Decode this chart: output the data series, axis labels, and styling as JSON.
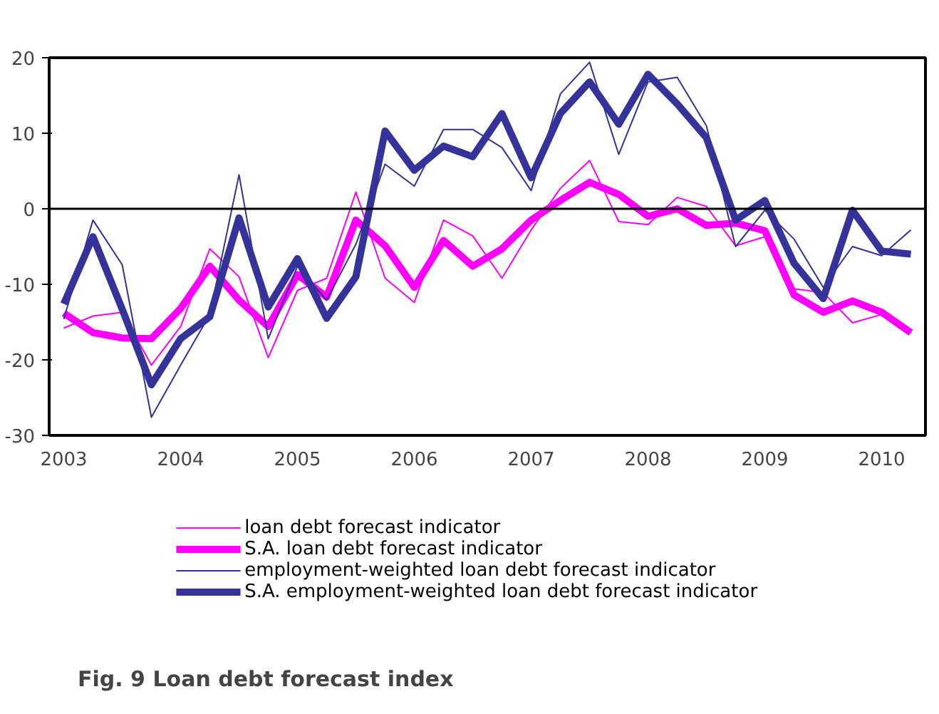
{
  "chart_data": {
    "type": "line",
    "title": "Fig. 9 Loan debt forecast index",
    "categories": [
      "2003",
      null,
      null,
      null,
      "2004",
      null,
      null,
      null,
      "2005",
      null,
      null,
      null,
      "2006",
      null,
      null,
      null,
      "2007",
      null,
      null,
      null,
      "2008",
      null,
      null,
      null,
      "2009",
      null,
      null,
      null,
      "2010",
      null
    ],
    "series": [
      {
        "name": "loan debt forecast indicator",
        "color": "#ff00ff",
        "values": [
          -15.8,
          -14.2,
          -13.7,
          -20.7,
          -15.6,
          -5.3,
          -9.0,
          -19.7,
          -10.8,
          -9.2,
          2.2,
          -9.2,
          -12.4,
          -1.5,
          -3.6,
          -9.2,
          -2.8,
          2.7,
          6.4,
          -1.7,
          -2.1,
          1.5,
          0.3,
          -4.9,
          -3.7,
          -10.6,
          -11.1,
          -15.1,
          -14.0,
          -16.4
        ]
      },
      {
        "name": "S.A. loan debt forecast indicator",
        "color": "#ff00ff",
        "values": [
          -13.8,
          -16.4,
          -17.1,
          -17.2,
          -13.2,
          -7.6,
          -12.1,
          -15.6,
          -8.7,
          -11.7,
          -1.5,
          -4.9,
          -10.4,
          -4.2,
          -7.6,
          -5.3,
          -1.5,
          1.1,
          3.5,
          1.9,
          -1.0,
          0.0,
          -2.2,
          -1.9,
          -2.9,
          -11.4,
          -13.7,
          -12.2,
          -13.7,
          -16.4
        ]
      },
      {
        "name": "employment-weighted loan debt forecast indicator",
        "color": "#333399",
        "values": [
          -14.6,
          -1.5,
          -7.4,
          -27.6,
          -20.7,
          -14.0,
          4.5,
          -17.2,
          -7.6,
          -12.1,
          -4.7,
          5.9,
          3.0,
          10.5,
          10.5,
          8.1,
          2.4,
          15.2,
          19.4,
          7.2,
          16.8,
          17.4,
          11.0,
          -5.0,
          -0.2,
          -4.0,
          -10.4,
          -5.0,
          -6.2,
          -2.8
        ]
      },
      {
        "name": "S.A. employment-weighted loan debt forecast indicator",
        "color": "#333399",
        "values": [
          -12.6,
          -3.7,
          -13.3,
          -23.3,
          -17.2,
          -14.3,
          -1.2,
          -13.0,
          -6.6,
          -14.5,
          -9.0,
          10.3,
          5.1,
          8.3,
          6.9,
          12.6,
          4.1,
          12.6,
          16.8,
          11.2,
          17.8,
          13.9,
          9.4,
          -1.5,
          1.1,
          -7.2,
          -11.9,
          -0.2,
          -5.6,
          -6.0
        ]
      }
    ],
    "ylim": [
      -30,
      20
    ],
    "yticks": [
      -30,
      -20,
      -10,
      0,
      10,
      20
    ],
    "ref_lines": [
      {
        "axis": "y",
        "value": 0
      }
    ],
    "grid": false,
    "legend": "bottom",
    "marker": "none",
    "line_style": "solid"
  }
}
